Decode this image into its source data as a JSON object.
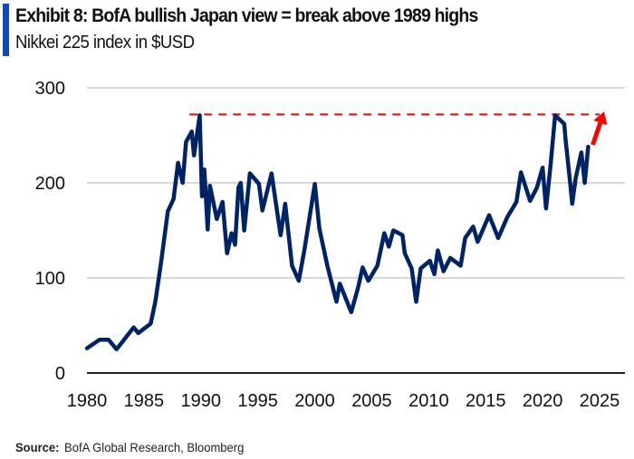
{
  "title": "Exhibit 8: BofA bullish Japan  view = break above 1989 highs",
  "subtitle": "Nikkei 225 index in $USD",
  "source_label": "Source:",
  "source_text": "BofA Global Research, Bloomberg",
  "colors": {
    "accent_bar": "#0a4bc8",
    "series": "#002366",
    "reference": "#ff0000",
    "grid": "#d9d9d9"
  },
  "chart_data": {
    "type": "line",
    "xlabel": "",
    "ylabel": "",
    "xlim": [
      1980,
      2025
    ],
    "ylim": [
      0,
      300
    ],
    "xticks": [
      "1980",
      "1985",
      "1990",
      "1995",
      "2000",
      "2005",
      "2010",
      "2015",
      "2020",
      "2025"
    ],
    "yticks": [
      "0",
      "100",
      "200",
      "300"
    ],
    "grid": "horizontal",
    "series": [
      {
        "points": [
          [
            1980,
            26
          ],
          [
            1981.1,
            35
          ],
          [
            1981.9,
            35
          ],
          [
            1982.6,
            25
          ],
          [
            1984.1,
            48
          ],
          [
            1984.5,
            42
          ],
          [
            1985.6,
            52
          ],
          [
            1986,
            75
          ],
          [
            1986.5,
            116
          ],
          [
            1987.1,
            170
          ],
          [
            1987.6,
            183
          ],
          [
            1988,
            221
          ],
          [
            1988.4,
            200
          ],
          [
            1988.7,
            243
          ],
          [
            1989.2,
            254
          ],
          [
            1989.4,
            229
          ],
          [
            1989.9,
            271
          ],
          [
            1990.1,
            186
          ],
          [
            1990.3,
            214
          ],
          [
            1990.6,
            151
          ],
          [
            1990.8,
            197
          ],
          [
            1991.4,
            162
          ],
          [
            1991.9,
            180
          ],
          [
            1992.3,
            126
          ],
          [
            1992.7,
            147
          ],
          [
            1993,
            135
          ],
          [
            1993.3,
            195
          ],
          [
            1993.5,
            200
          ],
          [
            1993.8,
            150
          ],
          [
            1994.3,
            210
          ],
          [
            1995.1,
            199
          ],
          [
            1995.4,
            171
          ],
          [
            1996.2,
            210
          ],
          [
            1997,
            145
          ],
          [
            1997.4,
            178
          ],
          [
            1998,
            113
          ],
          [
            1998.6,
            97
          ],
          [
            1999.1,
            130
          ],
          [
            2000,
            199
          ],
          [
            2000.4,
            152
          ],
          [
            2001.1,
            113
          ],
          [
            2001.9,
            75
          ],
          [
            2002.2,
            94
          ],
          [
            2003.2,
            64
          ],
          [
            2003.8,
            90
          ],
          [
            2004.2,
            111
          ],
          [
            2004.7,
            97
          ],
          [
            2005.5,
            113
          ],
          [
            2006.1,
            147
          ],
          [
            2006.5,
            133
          ],
          [
            2006.9,
            150
          ],
          [
            2007.7,
            145
          ],
          [
            2007.9,
            126
          ],
          [
            2008.5,
            110
          ],
          [
            2008.9,
            75
          ],
          [
            2009.3,
            110
          ],
          [
            2010.1,
            118
          ],
          [
            2010.5,
            104
          ],
          [
            2010.8,
            129
          ],
          [
            2011.3,
            107
          ],
          [
            2011.9,
            121
          ],
          [
            2012.8,
            113
          ],
          [
            2013.2,
            142
          ],
          [
            2013.9,
            154
          ],
          [
            2014.3,
            138
          ],
          [
            2015.3,
            166
          ],
          [
            2016.1,
            142
          ],
          [
            2016.9,
            164
          ],
          [
            2017.7,
            180
          ],
          [
            2018.1,
            211
          ],
          [
            2018.9,
            181
          ],
          [
            2019.5,
            195
          ],
          [
            2020,
            216
          ],
          [
            2020.3,
            173
          ],
          [
            2020.7,
            219
          ],
          [
            2021.1,
            271
          ],
          [
            2021.9,
            262
          ],
          [
            2022,
            247
          ],
          [
            2022.4,
            202
          ],
          [
            2022.6,
            178
          ],
          [
            2022.9,
            205
          ],
          [
            2023.4,
            232
          ],
          [
            2023.7,
            200
          ],
          [
            2024,
            238
          ]
        ]
      }
    ],
    "reference_line": {
      "value": 272,
      "from": 1989,
      "to": 2025,
      "style": "dashed"
    },
    "annotation_arrow": {
      "from": [
        2024.4,
        240
      ],
      "to": [
        2025.4,
        275
      ]
    }
  }
}
